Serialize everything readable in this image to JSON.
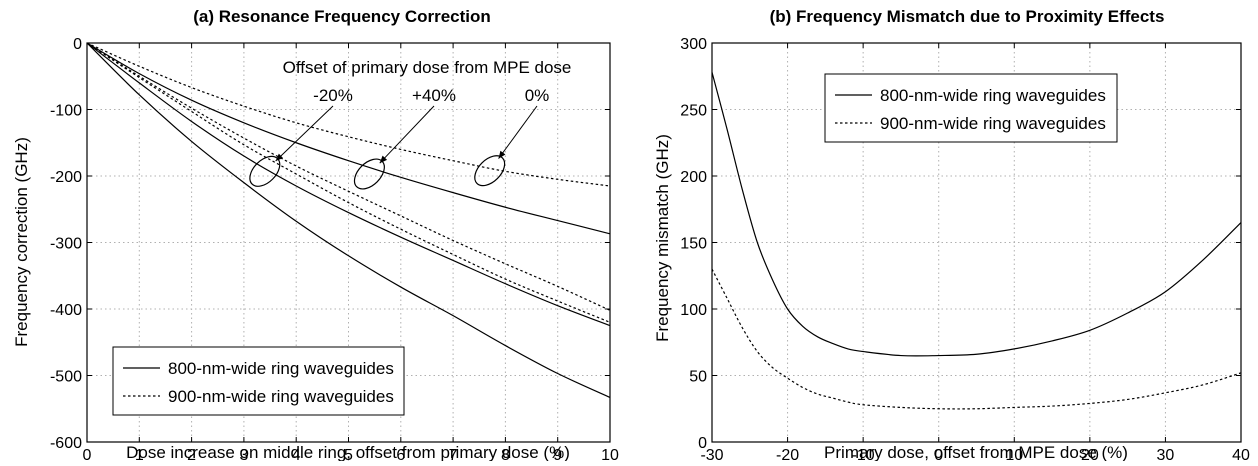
{
  "chart_data": [
    {
      "type": "line",
      "title": "(a) Resonance Frequency Correction",
      "xlabel": "Dose increase on middle ring, offset from primary dose (%)",
      "ylabel": "Frequency correction (GHz)",
      "xlim": [
        0,
        10
      ],
      "ylim": [
        -600,
        0
      ],
      "xticks": [
        0,
        1,
        2,
        3,
        4,
        5,
        6,
        7,
        8,
        9,
        10
      ],
      "yticks": [
        0,
        -100,
        -200,
        -300,
        -400,
        -500,
        -600
      ],
      "grid": true,
      "legend_position": "bottom-left",
      "legend": [
        {
          "label": "800-nm-wide ring waveguides",
          "style": "solid"
        },
        {
          "label": "900-nm-wide ring waveguides",
          "style": "dotted"
        }
      ],
      "annotation_header": "Offset of primary dose from MPE dose",
      "annotations": [
        {
          "label": "-20%",
          "center": [
            3.4,
            -193
          ]
        },
        {
          "label": "+40%",
          "center": [
            5.4,
            -197
          ]
        },
        {
          "label": "0%",
          "center": [
            7.7,
            -192
          ]
        }
      ],
      "series": [
        {
          "group": "-20%",
          "style": "solid",
          "x": [
            0,
            1,
            2,
            3,
            4,
            5,
            6,
            7,
            8,
            9,
            10
          ],
          "y": [
            0,
            -78,
            -148,
            -210,
            -268,
            -320,
            -367,
            -410,
            -455,
            -497,
            -533
          ]
        },
        {
          "group": "-20%",
          "style": "dotted",
          "x": [
            0,
            1,
            2,
            3,
            4,
            5,
            6,
            7,
            8,
            9,
            10
          ],
          "y": [
            0,
            -52,
            -103,
            -153,
            -197,
            -240,
            -280,
            -318,
            -355,
            -388,
            -420
          ]
        },
        {
          "group": "+40%",
          "style": "solid",
          "x": [
            0,
            1,
            2,
            3,
            4,
            5,
            6,
            7,
            8,
            9,
            10
          ],
          "y": [
            0,
            -60,
            -118,
            -170,
            -215,
            -255,
            -292,
            -327,
            -362,
            -395,
            -425
          ]
        },
        {
          "group": "+40%",
          "style": "dotted",
          "x": [
            0,
            1,
            2,
            3,
            4,
            5,
            6,
            7,
            8,
            9,
            10
          ],
          "y": [
            0,
            -50,
            -98,
            -143,
            -185,
            -223,
            -260,
            -297,
            -332,
            -366,
            -402
          ]
        },
        {
          "group": "0%",
          "style": "solid",
          "x": [
            0,
            1,
            2,
            3,
            4,
            5,
            6,
            7,
            8,
            9,
            10
          ],
          "y": [
            0,
            -46,
            -86,
            -120,
            -150,
            -177,
            -202,
            -225,
            -247,
            -267,
            -287
          ]
        },
        {
          "group": "0%",
          "style": "dotted",
          "x": [
            0,
            1,
            2,
            3,
            4,
            5,
            6,
            7,
            8,
            9,
            10
          ],
          "y": [
            0,
            -35,
            -67,
            -95,
            -120,
            -141,
            -160,
            -177,
            -193,
            -205,
            -215
          ]
        }
      ]
    },
    {
      "type": "line",
      "title": "(b) Frequency Mismatch due to Proximity Effects",
      "xlabel": "Primary dose, offset from MPE dose (%)",
      "ylabel": "Frequency mismatch (GHz)",
      "xlim": [
        -30,
        40
      ],
      "ylim": [
        0,
        300
      ],
      "xticks": [
        -30,
        -20,
        -10,
        0,
        10,
        20,
        30,
        40
      ],
      "yticks": [
        0,
        50,
        100,
        150,
        200,
        250,
        300
      ],
      "grid": true,
      "legend_position": "top-left",
      "legend": [
        {
          "label": "800-nm-wide ring waveguides",
          "style": "solid"
        },
        {
          "label": "900-nm-wide ring waveguides",
          "style": "dotted"
        }
      ],
      "series": [
        {
          "style": "solid",
          "x": [
            -30,
            -28,
            -26,
            -24,
            -22,
            -20,
            -18,
            -16,
            -14,
            -12,
            -10,
            -5,
            0,
            5,
            10,
            15,
            20,
            25,
            30,
            35,
            40
          ],
          "y": [
            278,
            235,
            190,
            150,
            122,
            100,
            87,
            79,
            74,
            70,
            68,
            65,
            65,
            66,
            70,
            76,
            84,
            97,
            113,
            137,
            165
          ]
        },
        {
          "style": "dotted",
          "x": [
            -30,
            -28,
            -26,
            -24,
            -22,
            -20,
            -18,
            -16,
            -14,
            -12,
            -10,
            -5,
            0,
            5,
            10,
            15,
            20,
            25,
            30,
            35,
            40
          ],
          "y": [
            130,
            108,
            86,
            68,
            56,
            48,
            41,
            36,
            33,
            30,
            28,
            26,
            25,
            25,
            26,
            27,
            29,
            32,
            37,
            43,
            52
          ]
        }
      ]
    }
  ]
}
